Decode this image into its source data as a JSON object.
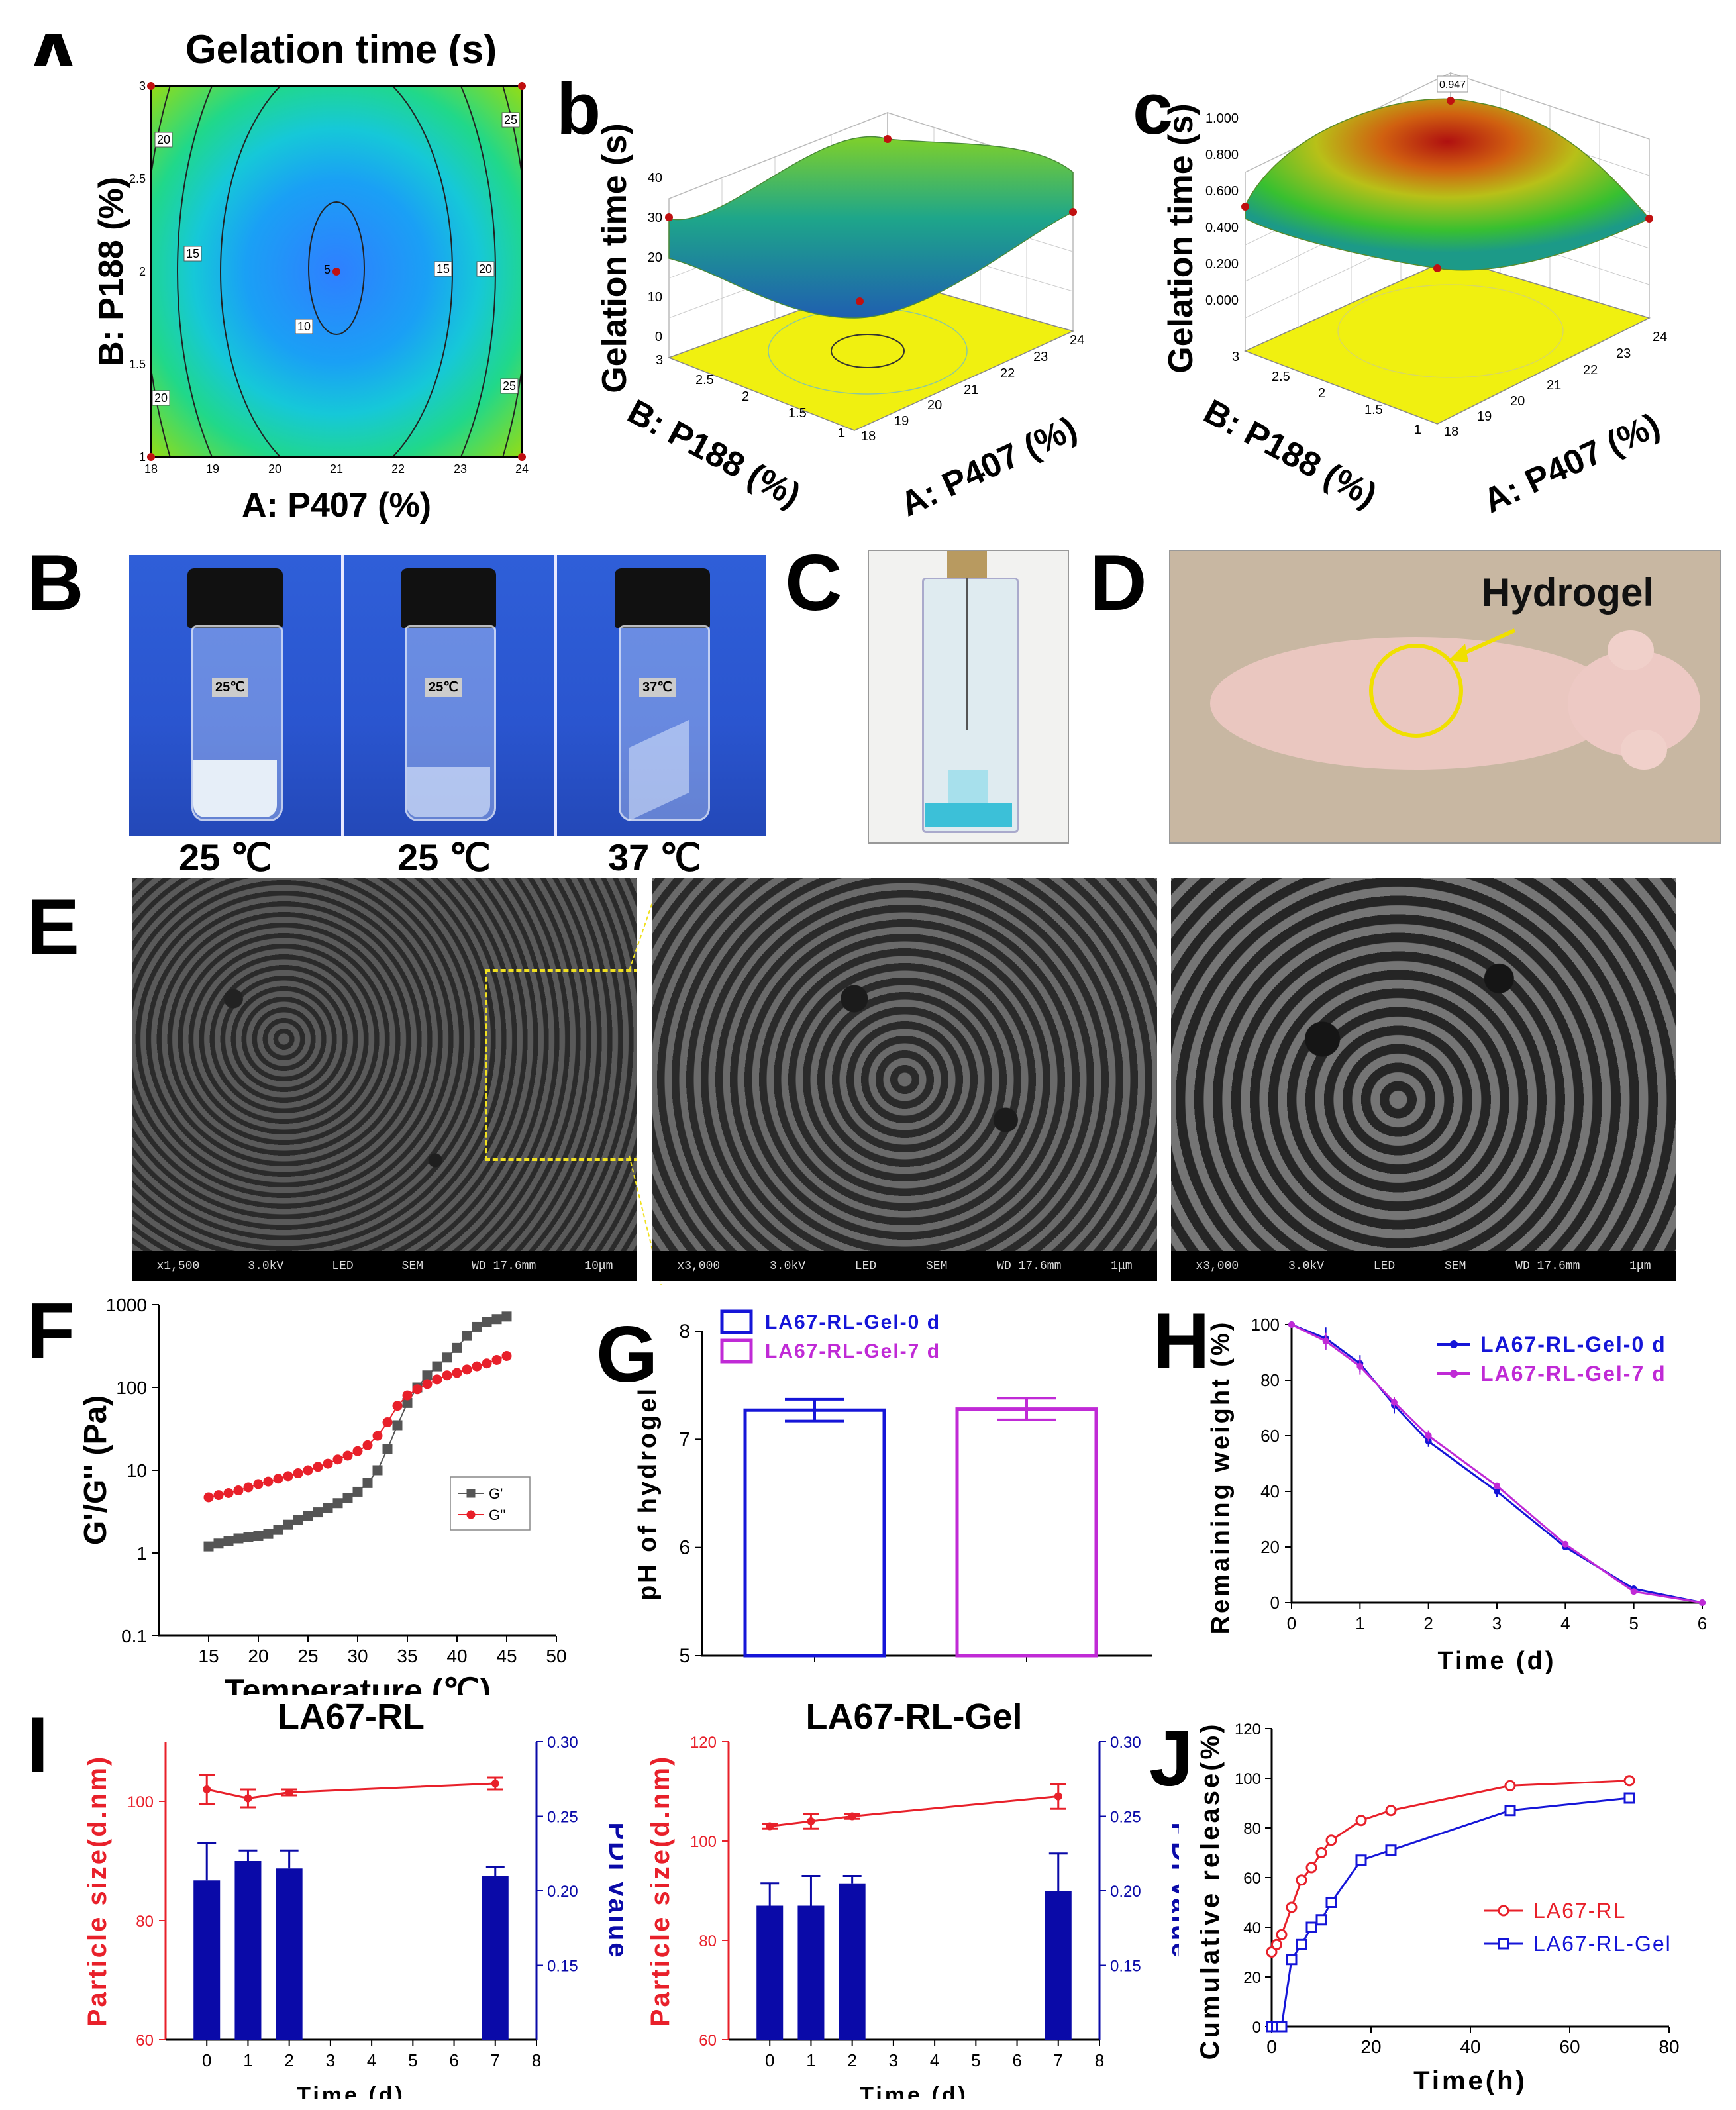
{
  "panel_labels": {
    "A": "A",
    "a": "a",
    "b": "b",
    "c": "c",
    "B": "B",
    "C": "C",
    "D": "D",
    "E": "E",
    "F": "F",
    "G": "G",
    "H": "H",
    "I": "I",
    "J": "J"
  },
  "panelA": {
    "title": "Gelation time (s)",
    "contour": {
      "xlabel": "A: P407 (%)",
      "ylabel": "B: P188 (%)",
      "xticks": [
        "18",
        "19",
        "20",
        "21",
        "22",
        "23",
        "24"
      ],
      "yticks": [
        "1",
        "1.5",
        "2",
        "2.5",
        "3"
      ],
      "contour_labels": [
        "20",
        "25",
        "15",
        "15",
        "20",
        "5",
        "10",
        "20",
        "25"
      ]
    },
    "surface_b": {
      "zlabel": "Gelation time (s)",
      "xlabel": "A: P407 (%)",
      "ylabel": "B: P188 (%)",
      "zticks": [
        "0",
        "10",
        "20",
        "30",
        "40"
      ],
      "xticks": [
        "18",
        "19",
        "20",
        "21",
        "22",
        "23",
        "24"
      ],
      "yticks": [
        "1",
        "1.5",
        "2",
        "2.5",
        "3"
      ]
    },
    "surface_c": {
      "zlabel": "Gelation time (s)",
      "xlabel": "A: P407 (%)",
      "ylabel": "B: P188 (%)",
      "zticks": [
        "0.000",
        "0.200",
        "0.400",
        "0.600",
        "0.800",
        "1.000"
      ],
      "peak_label": "0.947",
      "xticks": [
        "18",
        "19",
        "20",
        "21",
        "22",
        "23",
        "24"
      ],
      "yticks": [
        "1",
        "1.5",
        "2",
        "2.5",
        "3"
      ]
    }
  },
  "panelB": {
    "vials": [
      {
        "tag": "25℃",
        "caption": "25 ℃"
      },
      {
        "tag": "25℃",
        "caption": "25 ℃"
      },
      {
        "tag": "37℃",
        "caption": "37 ℃"
      }
    ]
  },
  "panelD": {
    "annotation": "Hydrogel"
  },
  "panelE": {
    "images": [
      {
        "info": [
          "x1,500",
          "3.0kV",
          "LED",
          "SEM",
          "WD 17.6mm"
        ],
        "scale": "10μm"
      },
      {
        "info": [
          "x3,000",
          "3.0kV",
          "LED",
          "SEM",
          "WD 17.6mm"
        ],
        "scale": "1μm"
      },
      {
        "info": [
          "x3,000",
          "3.0kV",
          "LED",
          "SEM",
          "WD 17.6mm"
        ],
        "scale": "1μm"
      }
    ]
  },
  "colors": {
    "red": "#e8202a",
    "blue": "#1515d8",
    "purple": "#c02ad6",
    "gray": "#555555",
    "navy": "#0a0aa8"
  },
  "chart_data": [
    {
      "id": "F",
      "type": "scatter",
      "xlabel": "Temperature (℃)",
      "ylabel": "G'/G'' (Pa)",
      "xlim": [
        10,
        50
      ],
      "ylim": [
        0.1,
        1000
      ],
      "yscale": "log",
      "xticks": [
        "15",
        "20",
        "25",
        "30",
        "35",
        "40",
        "45",
        "50"
      ],
      "yticks": [
        "0.1",
        "1",
        "10",
        "100",
        "1000"
      ],
      "series": [
        {
          "name": "G'",
          "x": [
            15,
            16,
            17,
            18,
            19,
            20,
            21,
            22,
            23,
            24,
            25,
            26,
            27,
            28,
            29,
            30,
            31,
            32,
            33,
            34,
            35,
            36,
            37,
            38,
            39,
            40,
            41,
            42,
            43,
            44,
            45
          ],
          "y": [
            1.2,
            1.3,
            1.4,
            1.5,
            1.55,
            1.6,
            1.7,
            1.9,
            2.2,
            2.5,
            2.8,
            3.1,
            3.5,
            4.0,
            4.6,
            5.5,
            7,
            10,
            18,
            35,
            65,
            100,
            140,
            180,
            230,
            300,
            420,
            540,
            620,
            670,
            720
          ]
        },
        {
          "name": "G''",
          "x": [
            15,
            16,
            17,
            18,
            19,
            20,
            21,
            22,
            23,
            24,
            25,
            26,
            27,
            28,
            29,
            30,
            31,
            32,
            33,
            34,
            35,
            36,
            37,
            38,
            39,
            40,
            41,
            42,
            43,
            44,
            45
          ],
          "y": [
            4.7,
            5.0,
            5.3,
            5.7,
            6.2,
            6.8,
            7.3,
            7.9,
            8.5,
            9.2,
            10,
            11,
            12,
            13.5,
            15,
            17,
            20,
            26,
            38,
            60,
            80,
            95,
            110,
            125,
            140,
            150,
            165,
            180,
            195,
            215,
            240
          ]
        }
      ]
    },
    {
      "id": "G",
      "type": "bar",
      "ylabel": "pH of hydrogel",
      "ylim": [
        5,
        8
      ],
      "yticks": [
        "5",
        "6",
        "7",
        "8"
      ],
      "categories": [
        "LA67-RL-Gel-0 d",
        "LA67-RL-Gel-7 d"
      ],
      "values": [
        7.27,
        7.28
      ],
      "errors": [
        0.1,
        0.1
      ]
    },
    {
      "id": "H",
      "type": "line",
      "xlabel": "Time (d)",
      "ylabel": "Remaining weight (%)",
      "xlim": [
        0,
        6
      ],
      "ylim": [
        0,
        100
      ],
      "xticks": [
        "0",
        "1",
        "2",
        "3",
        "4",
        "5",
        "6"
      ],
      "yticks": [
        "0",
        "20",
        "40",
        "60",
        "80",
        "100"
      ],
      "series": [
        {
          "name": "LA67-RL-Gel-0 d",
          "x": [
            0,
            0.5,
            1,
            1.5,
            2,
            3,
            4,
            5,
            6
          ],
          "y": [
            100,
            95,
            86,
            71,
            58,
            40,
            20,
            5,
            0
          ],
          "err": [
            0,
            4,
            3,
            3,
            2,
            2,
            1,
            1,
            0
          ]
        },
        {
          "name": "LA67-RL-Gel-7 d",
          "x": [
            0,
            0.5,
            1,
            1.5,
            2,
            3,
            4,
            5,
            6
          ],
          "y": [
            100,
            94,
            85,
            72,
            60,
            42,
            21,
            4,
            0
          ],
          "err": [
            0,
            3,
            3,
            2,
            2,
            1,
            1,
            1,
            0
          ]
        }
      ]
    },
    {
      "id": "I1",
      "type": "bar+line",
      "title": "LA67-RL",
      "xlabel": "Time (d)",
      "ylabel": "Particle size(d.nm)",
      "y2label": "PDI value",
      "xlim": [
        -1,
        8
      ],
      "xticks": [
        "0",
        "1",
        "2",
        "3",
        "4",
        "5",
        "6",
        "7",
        "8"
      ],
      "ylim": [
        60,
        110
      ],
      "yticks": [
        "60",
        "80",
        "100"
      ],
      "y2lim": [
        0.1,
        0.3
      ],
      "y2ticks": [
        "0.15",
        "0.20",
        "0.25",
        "0.30"
      ],
      "size": {
        "x": [
          0,
          1,
          2,
          7
        ],
        "y": [
          102,
          100.5,
          101.5,
          103
        ],
        "err": [
          2.5,
          1.5,
          0.5,
          1
        ]
      },
      "pdi": {
        "x": [
          0,
          1,
          2,
          7
        ],
        "y": [
          0.207,
          0.22,
          0.215,
          0.21
        ],
        "err": [
          0.025,
          0.007,
          0.012,
          0.006
        ]
      }
    },
    {
      "id": "I2",
      "type": "bar+line",
      "title": "LA67-RL-Gel",
      "xlabel": "Time (d)",
      "ylabel": "Particle size(d.nm)",
      "y2label": "PDI value",
      "xlim": [
        -1,
        8
      ],
      "xticks": [
        "0",
        "1",
        "2",
        "3",
        "4",
        "5",
        "6",
        "7",
        "8"
      ],
      "ylim": [
        60,
        120
      ],
      "yticks": [
        "60",
        "80",
        "100",
        "120"
      ],
      "y2lim": [
        0.1,
        0.3
      ],
      "y2ticks": [
        "0.15",
        "0.20",
        "0.25",
        "0.30"
      ],
      "size": {
        "x": [
          0,
          1,
          2,
          7
        ],
        "y": [
          103,
          104,
          105,
          109
        ],
        "err": [
          0.5,
          1.5,
          0.5,
          2.5
        ]
      },
      "pdi": {
        "x": [
          0,
          1,
          2,
          7
        ],
        "y": [
          0.19,
          0.19,
          0.205,
          0.2
        ],
        "err": [
          0.015,
          0.02,
          0.005,
          0.025
        ]
      }
    },
    {
      "id": "J",
      "type": "line",
      "xlabel": "Time(h)",
      "ylabel": "Cumulative release(%)",
      "xlim": [
        0,
        80
      ],
      "ylim": [
        0,
        120
      ],
      "xticks": [
        "0",
        "20",
        "40",
        "60",
        "80"
      ],
      "yticks": [
        "0",
        "20",
        "40",
        "60",
        "80",
        "100",
        "120"
      ],
      "series": [
        {
          "name": "LA67-RL",
          "x": [
            0,
            1,
            2,
            4,
            6,
            8,
            10,
            12,
            18,
            24,
            48,
            72
          ],
          "y": [
            30,
            33,
            37,
            48,
            59,
            64,
            70,
            75,
            83,
            87,
            97,
            99
          ]
        },
        {
          "name": "LA67-RL-Gel",
          "x": [
            0,
            1,
            2,
            4,
            6,
            8,
            10,
            12,
            18,
            24,
            48,
            72
          ],
          "y": [
            0,
            0,
            0,
            27,
            33,
            40,
            43,
            50,
            67,
            71,
            87,
            92
          ]
        }
      ]
    }
  ]
}
